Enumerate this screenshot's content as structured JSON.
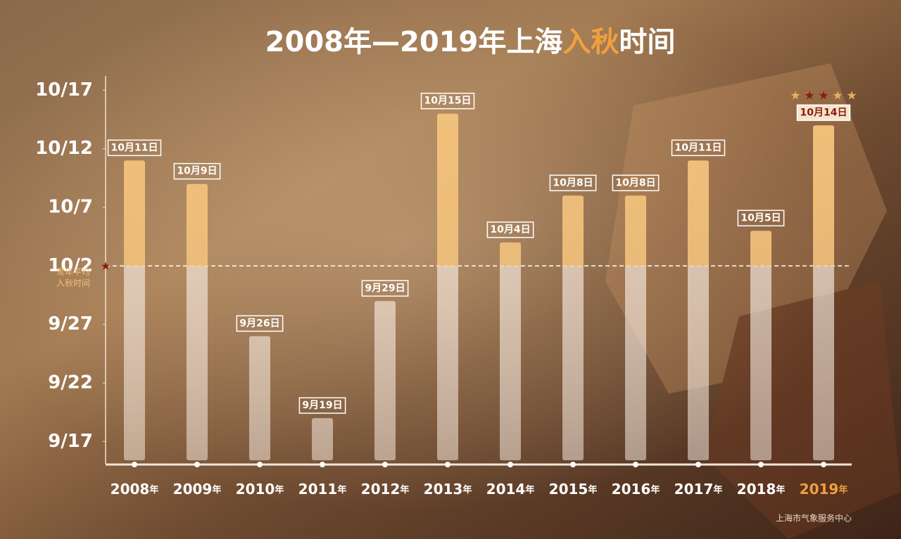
{
  "chart_data": {
    "type": "bar",
    "title": [
      "2008年—2019年上海",
      "入秋",
      "时间"
    ],
    "categories": [
      "2008年",
      "2009年",
      "2010年",
      "2011年",
      "2012年",
      "2013年",
      "2014年",
      "2015年",
      "2016年",
      "2017年",
      "2018年",
      "2019年"
    ],
    "values": [
      284,
      282,
      269,
      262,
      272,
      288,
      277,
      281,
      281,
      284,
      278,
      287
    ],
    "value_labels": [
      "10月11日",
      "10月9日",
      "9月26日",
      "9月19日",
      "9月29日",
      "10月15日",
      "10月4日",
      "10月8日",
      "10月8日",
      "10月11日",
      "10月5日",
      "10月14日"
    ],
    "ylim": [
      258.4,
      291
    ],
    "yticks": [
      {
        "value": 260,
        "label": "9/17"
      },
      {
        "value": 265,
        "label": "9/22"
      },
      {
        "value": 270,
        "label": "9/27"
      },
      {
        "value": 275,
        "label": "10/2"
      },
      {
        "value": 280,
        "label": "10/7"
      },
      {
        "value": 285,
        "label": "10/12"
      },
      {
        "value": 290,
        "label": "10/17"
      }
    ],
    "average": {
      "value": 275,
      "label": [
        "常年平均",
        "入秋时间"
      ]
    },
    "highlight_index": 11,
    "color": "#f2c27c",
    "source": "上海市气象服务中心"
  }
}
